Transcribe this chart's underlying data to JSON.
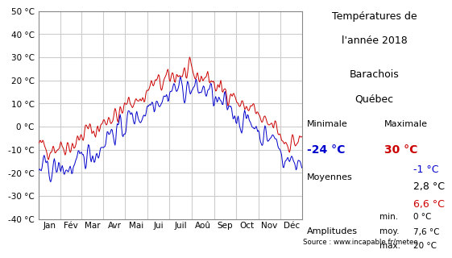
{
  "title_line1": "Températures de",
  "title_line2": "l'année 2018",
  "title_line4": "Barachois",
  "title_line5": "Québec",
  "months": [
    "Jan",
    "Fév",
    "Mar",
    "Avr",
    "Mai",
    "Jui",
    "Juil",
    "Aoû",
    "Sep",
    "Oct",
    "Nov",
    "Déc"
  ],
  "ylim": [
    -40,
    50
  ],
  "yticks": [
    -40,
    -30,
    -20,
    -10,
    0,
    10,
    20,
    30,
    40,
    50
  ],
  "min_temp_min": -24,
  "min_temp_max": 30,
  "mean_min": -1,
  "mean_overall": 2.8,
  "mean_max": 6.6,
  "amp_min": 0,
  "amp_mean": 7.6,
  "amp_max": 20,
  "color_min": "#0000cc",
  "color_max": "#cc0000",
  "color_black": "#000000",
  "source": "Source : www.incapable.fr/meteo",
  "background": "#ffffff",
  "grid_color": "#cccccc"
}
